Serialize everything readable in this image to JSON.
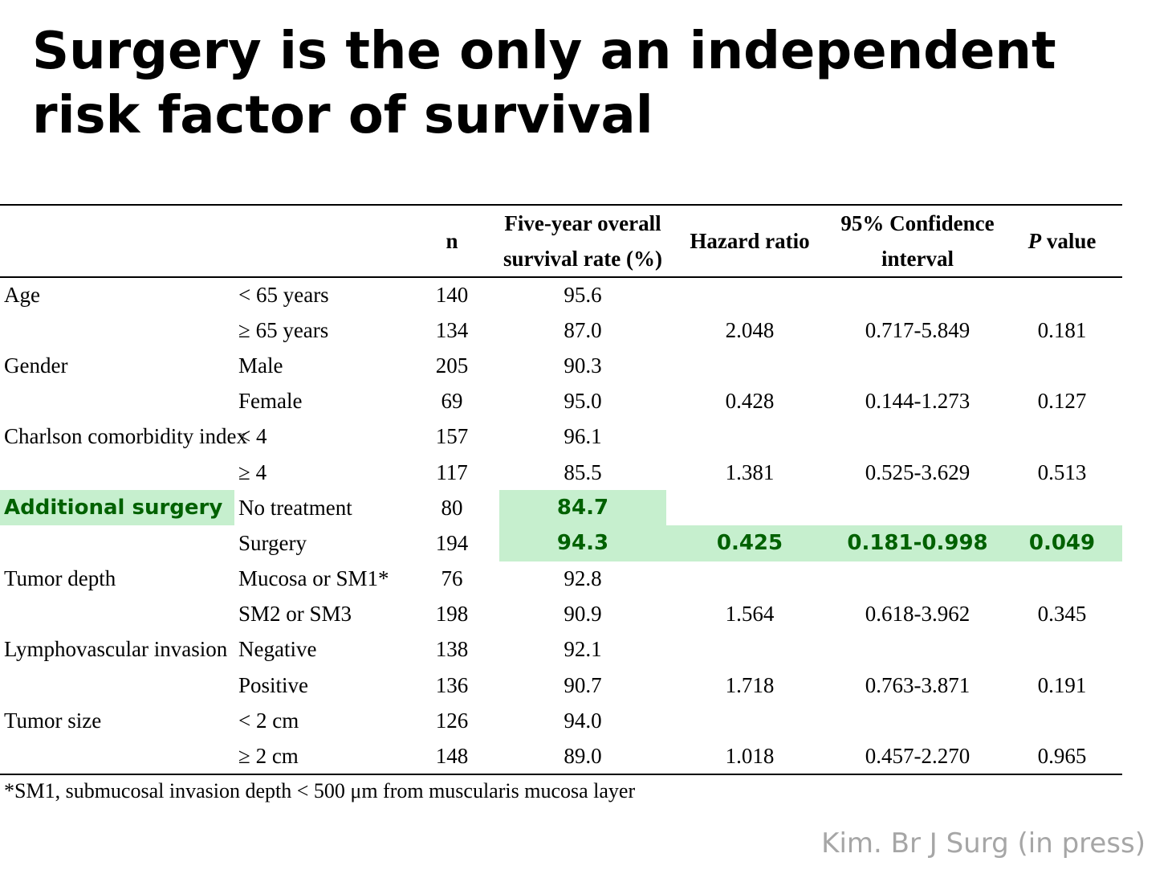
{
  "title": "Surgery is the only an independent risk factor of survival",
  "table": {
    "headers": {
      "group": "",
      "category": "",
      "n": "n",
      "survival_line1": "Five-year overall",
      "survival_line2": "survival rate (%)",
      "hazard": "Hazard ratio",
      "ci_line1": "95% Confidence",
      "ci_line2": "interval",
      "p_italic": "P",
      "p_rest": " value"
    },
    "rows": [
      {
        "group": "Age",
        "category": "< 65 years",
        "n": "140",
        "survival": "95.6",
        "hr": "",
        "ci": "",
        "p": ""
      },
      {
        "group": "",
        "category": "≥ 65 years",
        "n": "134",
        "survival": "87.0",
        "hr": "2.048",
        "ci": "0.717-5.849",
        "p": "0.181"
      },
      {
        "group": "Gender",
        "category": "Male",
        "n": "205",
        "survival": "90.3",
        "hr": "",
        "ci": "",
        "p": ""
      },
      {
        "group": "",
        "category": "Female",
        "n": "69",
        "survival": "95.0",
        "hr": "0.428",
        "ci": "0.144-1.273",
        "p": "0.127"
      },
      {
        "group": "Charlson comorbidity index",
        "category": "< 4",
        "n": "157",
        "survival": "96.1",
        "hr": "",
        "ci": "",
        "p": ""
      },
      {
        "group": "",
        "category": "≥ 4",
        "n": "117",
        "survival": "85.5",
        "hr": "1.381",
        "ci": "0.525-3.629",
        "p": "0.513"
      },
      {
        "group": "Additional surgery",
        "category": "No treatment",
        "n": "80",
        "survival": "84.7",
        "hr": "",
        "ci": "",
        "p": ""
      },
      {
        "group": "",
        "category": "Surgery",
        "n": "194",
        "survival": "94.3",
        "hr": "0.425",
        "ci": "0.181-0.998",
        "p": "0.049"
      },
      {
        "group": "Tumor depth",
        "category": "Mucosa or SM1*",
        "n": "76",
        "survival": "92.8",
        "hr": "",
        "ci": "",
        "p": ""
      },
      {
        "group": "",
        "category": "SM2 or SM3",
        "n": "198",
        "survival": "90.9",
        "hr": "1.564",
        "ci": "0.618-3.962",
        "p": "0.345"
      },
      {
        "group": "Lymphovascular invasion",
        "category": "Negative",
        "n": "138",
        "survival": "92.1",
        "hr": "",
        "ci": "",
        "p": ""
      },
      {
        "group": "",
        "category": "Positive",
        "n": "136",
        "survival": "90.7",
        "hr": "1.718",
        "ci": "0.763-3.871",
        "p": "0.191"
      },
      {
        "group": "Tumor size",
        "category": "< 2 cm",
        "n": "126",
        "survival": "94.0",
        "hr": "",
        "ci": "",
        "p": ""
      },
      {
        "group": "",
        "category": "≥ 2 cm",
        "n": "148",
        "survival": "89.0",
        "hr": "1.018",
        "ci": "0.457-2.270",
        "p": "0.965"
      }
    ]
  },
  "footnote": "*SM1, submucosal invasion depth < 500 μm from muscularis mucosa layer",
  "citation": "Kim. Br J Surg (in press)",
  "colors": {
    "highlight_bg": "#c6efce",
    "highlight_text": "#006100",
    "citation": "#a6a6a6"
  }
}
